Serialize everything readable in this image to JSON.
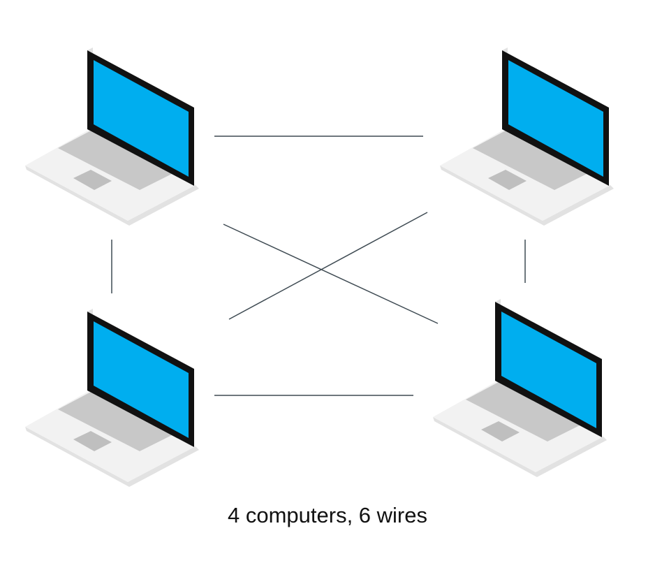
{
  "caption": "4 computers, 6 wires",
  "computers": [
    {
      "id": "computer-top-left"
    },
    {
      "id": "computer-top-right"
    },
    {
      "id": "computer-bottom-left"
    },
    {
      "id": "computer-bottom-right"
    }
  ],
  "wires": [
    {
      "id": "wire-top",
      "from": "computer-top-left",
      "to": "computer-top-right"
    },
    {
      "id": "wire-bottom",
      "from": "computer-bottom-left",
      "to": "computer-bottom-right"
    },
    {
      "id": "wire-left",
      "from": "computer-top-left",
      "to": "computer-bottom-left"
    },
    {
      "id": "wire-right",
      "from": "computer-top-right",
      "to": "computer-bottom-right"
    },
    {
      "id": "wire-diagonal-1",
      "from": "computer-top-left",
      "to": "computer-bottom-right"
    },
    {
      "id": "wire-diagonal-2",
      "from": "computer-top-right",
      "to": "computer-bottom-left"
    }
  ],
  "colors": {
    "screen": "#00AEEF",
    "bezel": "#111111",
    "body": "#F2F2F2",
    "body_shade": "#E2E2E2",
    "keyboard": "#C8C8C8",
    "trackpad": "#BFBFBF",
    "wire": "#3E4A52"
  }
}
